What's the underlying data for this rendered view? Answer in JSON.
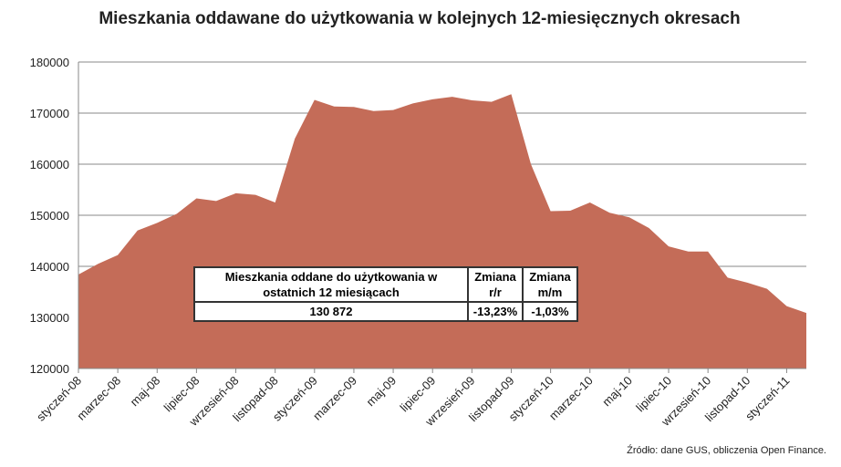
{
  "chart_data": {
    "type": "area",
    "title": "Mieszkania oddawane do użytkowania w kolejnych 12-miesięcznych okresach",
    "categories": [
      "styczeń-08",
      null,
      "marzec-08",
      null,
      "maj-08",
      null,
      "lipiec-08",
      null,
      "wrzesień-08",
      null,
      "listopad-08",
      null,
      "styczeń-09",
      null,
      "marzec-09",
      null,
      "maj-09",
      null,
      "lipiec-09",
      null,
      "wrzesień-09",
      null,
      "listopad-09",
      null,
      "styczeń-10",
      null,
      "marzec-10",
      null,
      "maj-10",
      null,
      "lipiec-10",
      null,
      "wrzesień-10",
      null,
      "listopad-10",
      null,
      "styczeń-11",
      null
    ],
    "values": [
      138400,
      140500,
      142200,
      147000,
      148500,
      150300,
      153300,
      152800,
      154300,
      154000,
      152500,
      165000,
      172600,
      171300,
      171200,
      170400,
      170600,
      171900,
      172700,
      173200,
      172500,
      172200,
      173700,
      160000,
      150800,
      150900,
      152500,
      150500,
      149600,
      147500,
      143900,
      142900,
      142900,
      137800,
      136800,
      135600,
      132200,
      130872
    ],
    "color": "#c46c58",
    "ylim": [
      120000,
      180000
    ],
    "yticks": [
      120000,
      130000,
      140000,
      150000,
      160000,
      170000,
      180000
    ],
    "grid": true,
    "source": "Źródło: dane GUS, obliczenia Open Finance."
  },
  "table": {
    "header": [
      "Mieszkania oddane do użytkowania w ostatnich 12 miesiącach",
      "Zmiana r/r",
      "Zmiana m/m"
    ],
    "row": [
      "130 872",
      "-13,23%",
      "-1,03%"
    ]
  }
}
